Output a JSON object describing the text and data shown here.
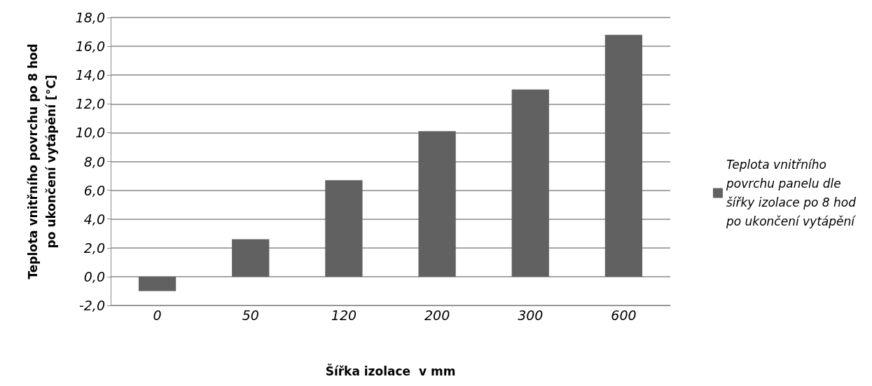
{
  "chart_data": {
    "type": "bar",
    "categories": [
      "0",
      "50",
      "120",
      "200",
      "300",
      "600"
    ],
    "series": [
      {
        "name": "Teplota vnitřního povrchu panelu dle šířky izolace po 8 hod po ukončení vytápění",
        "color": "#616161",
        "values": [
          -1.0,
          2.6,
          6.7,
          10.1,
          13.0,
          16.8
        ]
      }
    ],
    "xlabel": "Šířka izolace  v mm",
    "ylabel": "Teplota vnitřního povrchu po 8 hod po ukončení vytápění [°C]",
    "ylim": [
      -2,
      18
    ],
    "yticks": [
      {
        "value": -2,
        "label": "-2,0"
      },
      {
        "value": 0,
        "label": "0,0"
      },
      {
        "value": 2,
        "label": "2,0"
      },
      {
        "value": 4,
        "label": "4,0"
      },
      {
        "value": 6,
        "label": "6,0"
      },
      {
        "value": 8,
        "label": "8,0"
      },
      {
        "value": 10,
        "label": "10,0"
      },
      {
        "value": 12,
        "label": "12,0"
      },
      {
        "value": 14,
        "label": "14,0"
      },
      {
        "value": 16,
        "label": "16,0"
      },
      {
        "value": 18,
        "label": "18,0"
      }
    ],
    "grid": "y",
    "legend": "right"
  }
}
